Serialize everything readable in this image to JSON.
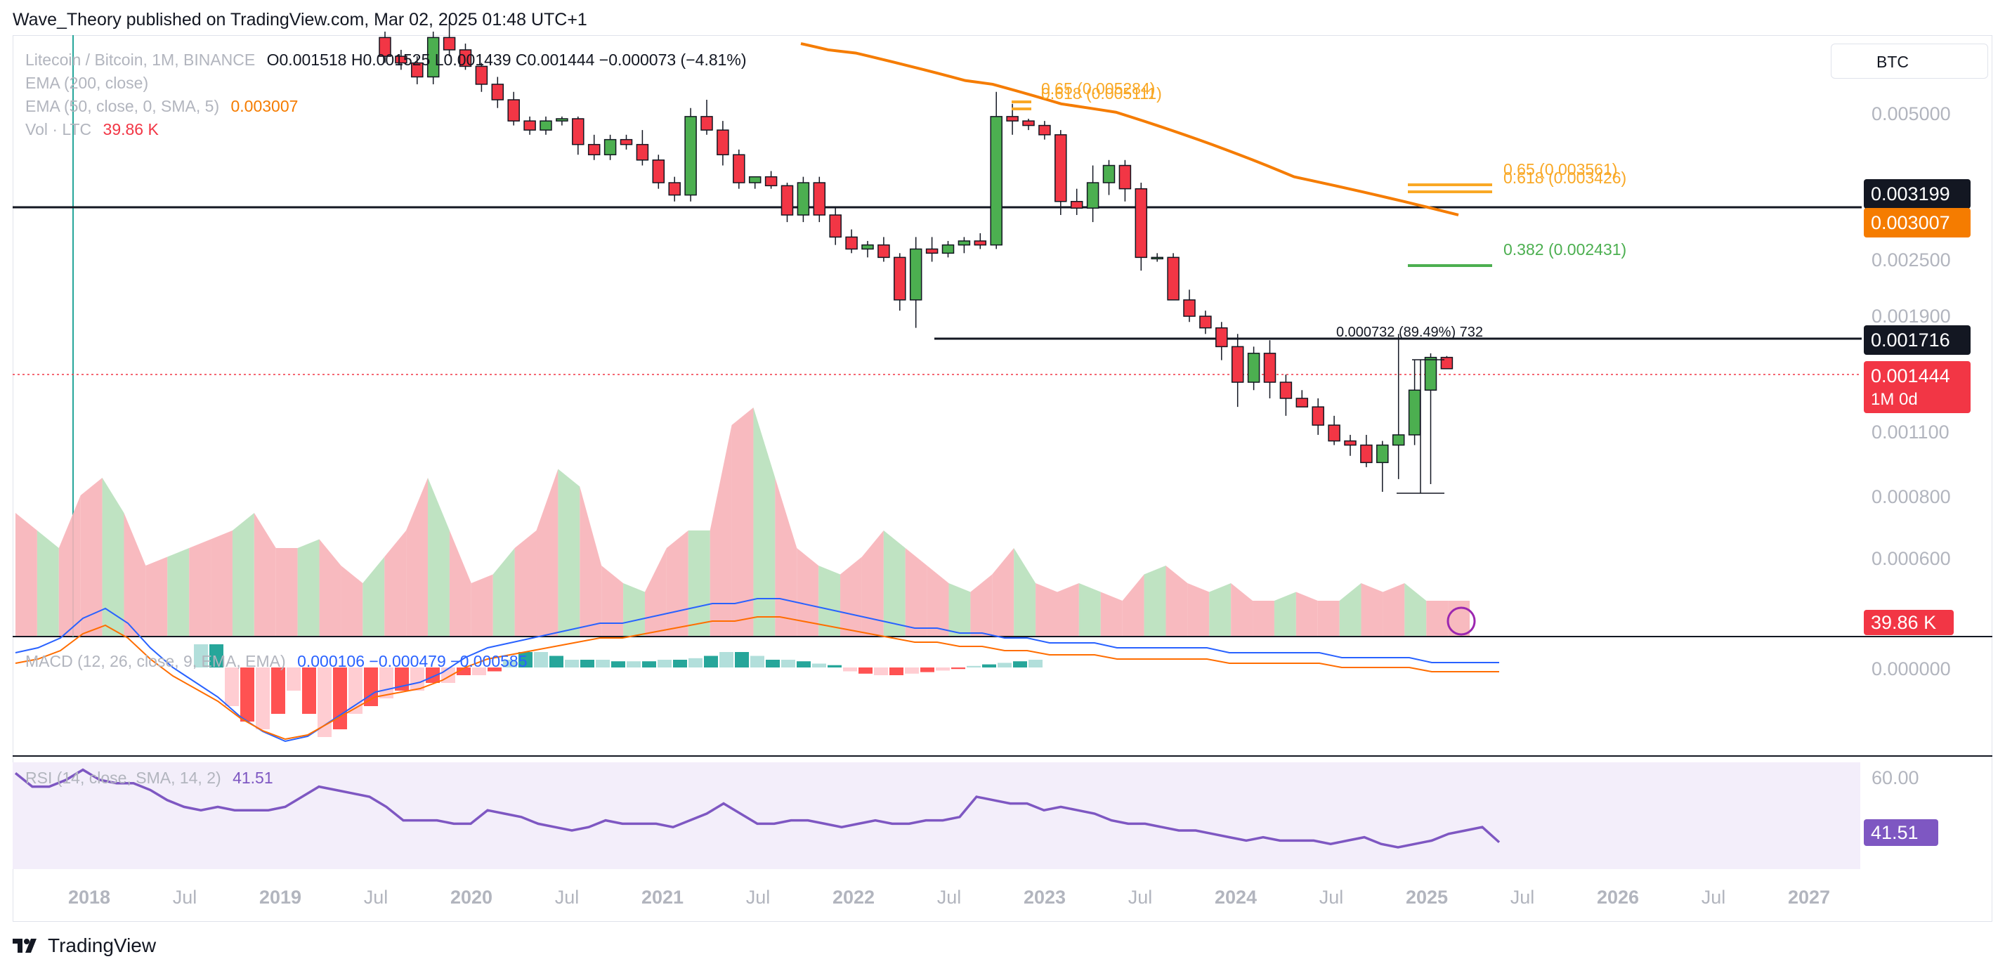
{
  "header": {
    "published": "Wave_Theory published on TradingView.com, Mar 02, 2025 01:48 UTC+1"
  },
  "legend": {
    "symbol": "Litecoin / Bitcoin, 1M, BINANCE",
    "ohlc": "O0.001518  H0.001525  L0.001439  C0.001444  −0.000073 (−4.81%)",
    "ema200": "EMA (200, close)",
    "ema50_label": "EMA (50, close, 0, SMA, 5)",
    "ema50_value": "0.003007",
    "vol_label": "Vol · LTC",
    "vol_value": "39.86 K",
    "macd_label": "MACD (12, 26, close, 9, EMA, EMA)",
    "macd_values": "0.000106  −0.000479  −0.000585",
    "rsi_label": "RSI (14, close, SMA, 14, 2)",
    "rsi_value": "41.51"
  },
  "symbol_box": "BTC",
  "price_labels": {
    "resistance": "0.003199",
    "ema50": "0.003007",
    "support": "0.001716",
    "last": "0.001444",
    "last_tf": "1M 0d",
    "volume": "39.86 K",
    "rsi": "41.51"
  },
  "fib_labels": {
    "top_old": "0.65 (0.005284)",
    "top_old_618": "0.618 (0.005111)",
    "top_new_65": "0.65 (0.003561)",
    "top_new_618": "0.618 (0.003426)",
    "fib_382": "0.382 (0.002431)",
    "measure": "0.000732 (89.49%) 732"
  },
  "price_axis": [
    "0.005000",
    "0.002500",
    "0.001900",
    "0.001100",
    "0.000800",
    "0.000600"
  ],
  "macd_axis": "0.000000",
  "rsi_axis": "60.00",
  "time_axis": [
    {
      "t": "2018",
      "yr": true
    },
    {
      "t": "Jul",
      "yr": false
    },
    {
      "t": "2019",
      "yr": true
    },
    {
      "t": "Jul",
      "yr": false
    },
    {
      "t": "2020",
      "yr": true
    },
    {
      "t": "Jul",
      "yr": false
    },
    {
      "t": "2021",
      "yr": true
    },
    {
      "t": "Jul",
      "yr": false
    },
    {
      "t": "2022",
      "yr": true
    },
    {
      "t": "Jul",
      "yr": false
    },
    {
      "t": "2023",
      "yr": true
    },
    {
      "t": "Jul",
      "yr": false
    },
    {
      "t": "2024",
      "yr": true
    },
    {
      "t": "Jul",
      "yr": false
    },
    {
      "t": "2025",
      "yr": true
    },
    {
      "t": "Jul",
      "yr": false
    },
    {
      "t": "2026",
      "yr": true
    },
    {
      "t": "Jul",
      "yr": false
    },
    {
      "t": "2027",
      "yr": true
    }
  ],
  "footer": {
    "brand": "TradingView"
  },
  "colors": {
    "up": "#4caf50",
    "down": "#f23645",
    "ema50": "#f57c00",
    "macd": "#2962ff",
    "signal": "#ff6d00",
    "rsi": "#7e57c2"
  },
  "chart_data": {
    "type": "candlestick",
    "title": "Litecoin / Bitcoin, 1M, BINANCE",
    "start_month": "2019-07",
    "ylabel": "Price (BTC)",
    "ohlc": [
      [
        0.007,
        0.0072,
        0.0062,
        0.0064
      ],
      [
        0.0064,
        0.0066,
        0.006,
        0.0062
      ],
      [
        0.0062,
        0.0064,
        0.0056,
        0.0058
      ],
      [
        0.0058,
        0.0072,
        0.0056,
        0.007
      ],
      [
        0.007,
        0.0076,
        0.0064,
        0.0066
      ],
      [
        0.0066,
        0.0068,
        0.006,
        0.0061
      ],
      [
        0.0061,
        0.0062,
        0.0054,
        0.0056
      ],
      [
        0.0056,
        0.0058,
        0.005,
        0.0052
      ],
      [
        0.0052,
        0.0054,
        0.0046,
        0.0047
      ],
      [
        0.0047,
        0.0048,
        0.0044,
        0.0045
      ],
      [
        0.0045,
        0.0048,
        0.0044,
        0.0047
      ],
      [
        0.0047,
        0.0048,
        0.0046,
        0.00475
      ],
      [
        0.00475,
        0.0048,
        0.004,
        0.0042
      ],
      [
        0.0042,
        0.0044,
        0.0039,
        0.004
      ],
      [
        0.004,
        0.0044,
        0.0039,
        0.0043
      ],
      [
        0.0043,
        0.0044,
        0.0041,
        0.0042
      ],
      [
        0.0042,
        0.0045,
        0.0038,
        0.0039
      ],
      [
        0.0039,
        0.004,
        0.0034,
        0.0035
      ],
      [
        0.0035,
        0.0036,
        0.0032,
        0.0033
      ],
      [
        0.0033,
        0.005,
        0.0032,
        0.0048
      ],
      [
        0.0048,
        0.0052,
        0.0044,
        0.0045
      ],
      [
        0.0045,
        0.0047,
        0.0038,
        0.004
      ],
      [
        0.004,
        0.0041,
        0.0034,
        0.0035
      ],
      [
        0.0035,
        0.0036,
        0.0034,
        0.0036
      ],
      [
        0.0036,
        0.0037,
        0.0034,
        0.00345
      ],
      [
        0.00345,
        0.0035,
        0.0029,
        0.003
      ],
      [
        0.003,
        0.0036,
        0.0029,
        0.0035
      ],
      [
        0.0035,
        0.0036,
        0.0029,
        0.003
      ],
      [
        0.003,
        0.0031,
        0.0026,
        0.0027
      ],
      [
        0.0027,
        0.0028,
        0.0025,
        0.00255
      ],
      [
        0.00255,
        0.00265,
        0.00245,
        0.0026
      ],
      [
        0.0026,
        0.0027,
        0.0024,
        0.00245
      ],
      [
        0.00245,
        0.0025,
        0.0019,
        0.002
      ],
      [
        0.002,
        0.0027,
        0.00175,
        0.00255
      ],
      [
        0.00255,
        0.0027,
        0.0024,
        0.0025
      ],
      [
        0.0025,
        0.00265,
        0.00245,
        0.0026
      ],
      [
        0.0026,
        0.0027,
        0.0025,
        0.00265
      ],
      [
        0.00265,
        0.00275,
        0.00255,
        0.0026
      ],
      [
        0.0026,
        0.0054,
        0.00255,
        0.0048
      ],
      [
        0.0048,
        0.0051,
        0.0044,
        0.0047
      ],
      [
        0.0047,
        0.00475,
        0.0045,
        0.0046
      ],
      [
        0.0046,
        0.0047,
        0.0043,
        0.0044
      ],
      [
        0.0044,
        0.0045,
        0.003,
        0.0032
      ],
      [
        0.0032,
        0.0034,
        0.003,
        0.0031
      ],
      [
        0.0031,
        0.0038,
        0.0029,
        0.0035
      ],
      [
        0.0035,
        0.0039,
        0.0033,
        0.0038
      ],
      [
        0.0038,
        0.0039,
        0.0032,
        0.0034
      ],
      [
        0.0034,
        0.0035,
        0.0023,
        0.00245
      ],
      [
        0.00245,
        0.0025,
        0.0024,
        0.00245
      ],
      [
        0.00245,
        0.0025,
        0.002,
        0.002
      ],
      [
        0.002,
        0.0021,
        0.0018,
        0.00185
      ],
      [
        0.00185,
        0.0019,
        0.0017,
        0.00175
      ],
      [
        0.00175,
        0.0018,
        0.0015,
        0.0016
      ],
      [
        0.0016,
        0.0017,
        0.0012,
        0.00135
      ],
      [
        0.00135,
        0.0016,
        0.0013,
        0.00155
      ],
      [
        0.00155,
        0.00165,
        0.00125,
        0.00135
      ],
      [
        0.00135,
        0.0014,
        0.00115,
        0.00125
      ],
      [
        0.00125,
        0.0013,
        0.0012,
        0.0012
      ],
      [
        0.0012,
        0.00125,
        0.00105,
        0.0011
      ],
      [
        0.0011,
        0.00115,
        0.001,
        0.00102
      ],
      [
        0.00102,
        0.00105,
        0.00095,
        0.001
      ],
      [
        0.001,
        0.00105,
        0.0009,
        0.00092
      ],
      [
        0.00092,
        0.00102,
        0.0008,
        0.001
      ],
      [
        0.001,
        0.0017,
        0.00085,
        0.00105
      ],
      [
        0.00105,
        0.0015,
        0.001,
        0.0013
      ],
      [
        0.0013,
        0.00155,
        0.00083,
        0.00152
      ],
      [
        0.00152,
        0.00153,
        0.00144,
        0.00144
      ]
    ],
    "volume": [
      0.7,
      0.6,
      0.5,
      0.8,
      0.9,
      0.7,
      0.4,
      0.45,
      0.5,
      0.55,
      0.6,
      0.7,
      0.5,
      0.5,
      0.55,
      0.4,
      0.3,
      0.45,
      0.6,
      0.9,
      0.6,
      0.3,
      0.35,
      0.5,
      0.6,
      0.95,
      0.85,
      0.4,
      0.3,
      0.25,
      0.5,
      0.6,
      0.6,
      1.2,
      1.3,
      0.9,
      0.5,
      0.4,
      0.35,
      0.45,
      0.6,
      0.5,
      0.4,
      0.3,
      0.25,
      0.35,
      0.5,
      0.3,
      0.25,
      0.3,
      0.25,
      0.2,
      0.35,
      0.4,
      0.3,
      0.25,
      0.3,
      0.2,
      0.2,
      0.25,
      0.2,
      0.2,
      0.3,
      0.25,
      0.3,
      0.2,
      0.2
    ],
    "ema200": [
      0.0068,
      0.0067,
      0.0066,
      0.00655,
      0.0065,
      0.0064,
      0.0063,
      0.0062,
      0.0061,
      0.006,
      0.0059,
      0.0058,
      0.0057,
      0.00565,
      0.0056,
      0.0055,
      0.0054,
      0.0053,
      0.0052,
      0.0051,
      0.00505,
      0.005,
      0.00495,
      0.0049,
      0.0048,
      0.0047,
      0.0046,
      0.0045,
      0.0044,
      0.0043,
      0.0042,
      0.0041,
      0.004,
      0.0039,
      0.0038,
      0.0037,
      0.0036,
      0.00355,
      0.0035,
      0.00345,
      0.0034,
      0.00335,
      0.0033,
      0.00325,
      0.0032,
      0.00315,
      0.0031,
      0.00305,
      0.003
    ],
    "macd": [
      0.0003,
      0.0004,
      0.0006,
      0.001,
      0.0012,
      0.0009,
      0.0004,
      0.0,
      -0.0003,
      -0.0006,
      -0.001,
      -0.0013,
      -0.0015,
      -0.0014,
      -0.0011,
      -0.0008,
      -0.0005,
      -0.0004,
      -0.0003,
      -0.0001,
      0.0002,
      0.0004,
      0.0005,
      0.0006,
      0.0007,
      0.0008,
      0.0009,
      0.0009,
      0.001,
      0.0011,
      0.0012,
      0.0013,
      0.0013,
      0.0014,
      0.0014,
      0.0013,
      0.0012,
      0.0011,
      0.001,
      0.0009,
      0.0008,
      0.0008,
      0.0007,
      0.0007,
      0.0006,
      0.0006,
      0.0005,
      0.0005,
      0.0005,
      0.0004,
      0.0004,
      0.0004,
      0.0004,
      0.0004,
      0.0003,
      0.0003,
      0.0003,
      0.0003,
      0.0003,
      0.0002,
      0.0002,
      0.0002,
      0.0002,
      0.0001,
      0.0001,
      0.0001,
      0.0001
    ],
    "macd_hist": [
      0.0003,
      0.0003,
      -0.0005,
      -0.0007,
      -0.0008,
      -0.0006,
      -0.0003,
      -0.0006,
      -0.0009,
      -0.0008,
      -0.0006,
      -0.0005,
      -0.0004,
      -0.0003,
      -0.0003,
      -0.0002,
      -0.0002,
      -0.0001,
      -0.0001,
      -5e-05,
      0.0001,
      0.0002,
      0.0002,
      0.00015,
      0.0001,
      0.0001,
      0.0001,
      8e-05,
      8e-05,
      8e-05,
      0.0001,
      0.0001,
      0.00012,
      0.00015,
      0.0002,
      0.0002,
      0.00015,
      0.0001,
      0.0001,
      8e-05,
      5e-05,
      3e-05,
      -5e-05,
      -8e-05,
      -0.0001,
      -0.0001,
      -8e-05,
      -6e-05,
      -4e-05,
      -2e-05,
      2e-05,
      4e-05,
      6e-05,
      8e-05,
      0.0001
    ],
    "rsi": [
      62,
      58,
      58,
      60,
      63,
      60,
      59,
      59,
      57,
      54,
      52,
      51,
      52,
      51,
      51,
      51,
      52,
      55,
      58,
      57,
      56,
      55,
      52,
      48,
      48,
      48,
      47,
      47,
      51,
      50,
      49,
      47,
      46,
      45,
      46,
      48,
      47,
      47,
      47,
      46,
      48,
      50,
      53,
      50,
      47,
      47,
      48,
      48,
      47,
      46,
      47,
      48,
      47,
      47,
      48,
      48,
      49,
      55,
      54,
      53,
      53,
      51,
      52,
      51,
      50,
      48,
      47,
      47,
      46,
      45,
      45,
      44,
      43,
      42,
      43,
      42,
      42,
      42,
      41,
      42,
      43,
      41,
      40,
      41,
      42,
      44,
      45,
      46,
      41.51
    ]
  }
}
